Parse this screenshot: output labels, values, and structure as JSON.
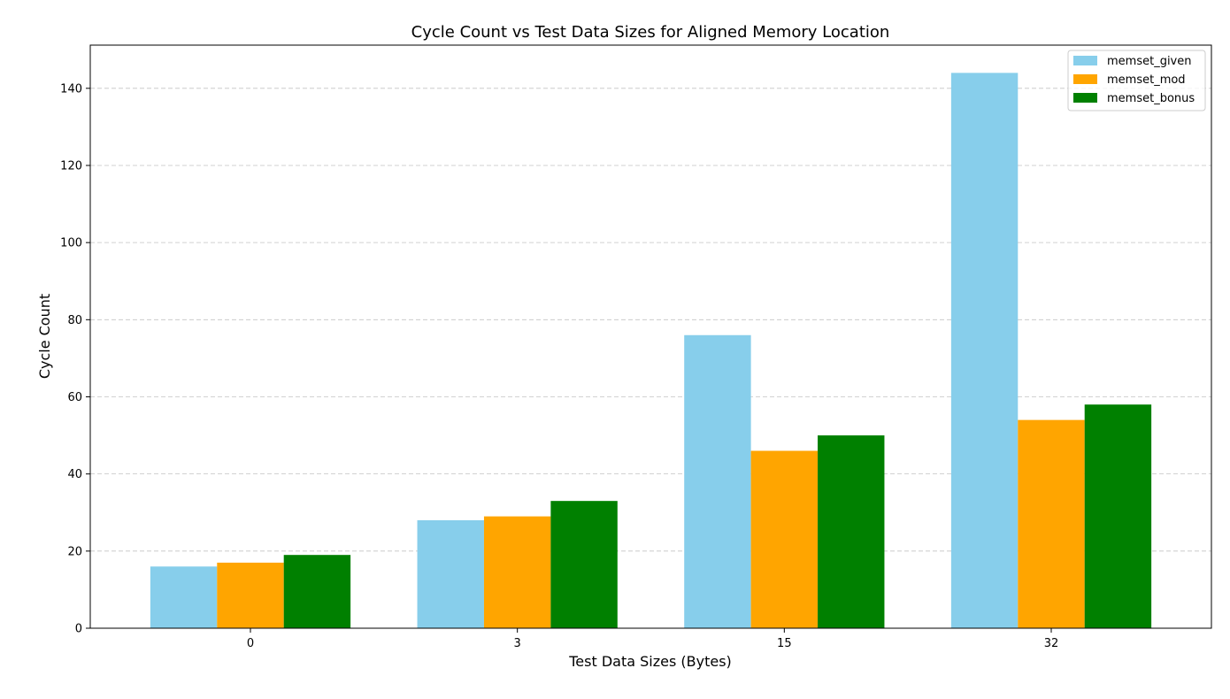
{
  "chart_data": {
    "type": "bar",
    "title": "Cycle Count vs Test Data Sizes for Aligned Memory Location",
    "xlabel": "Test Data Sizes (Bytes)",
    "ylabel": "Cycle Count",
    "categories": [
      "0",
      "3",
      "15",
      "32"
    ],
    "series": [
      {
        "name": "memset_given",
        "color": "#87CEEB",
        "values": [
          16,
          28,
          76,
          144
        ]
      },
      {
        "name": "memset_mod",
        "color": "#FFA500",
        "values": [
          17,
          29,
          46,
          54
        ]
      },
      {
        "name": "memset_bonus",
        "color": "#008000",
        "values": [
          19,
          33,
          50,
          58
        ]
      }
    ],
    "ylim": [
      0,
      151.2
    ],
    "yticks": [
      0,
      20,
      40,
      60,
      80,
      100,
      120,
      140
    ],
    "grid": "y",
    "legend": "top-right"
  }
}
